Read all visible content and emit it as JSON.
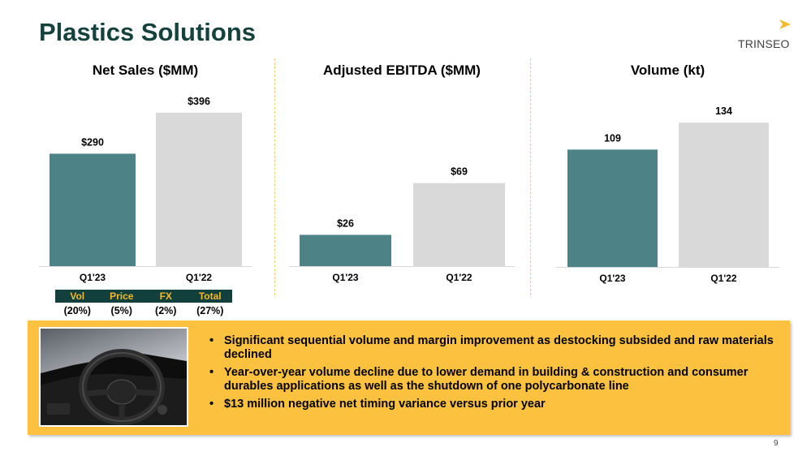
{
  "title": "Plastics Solutions",
  "logo": {
    "text": "TRINSEO",
    "icon": "chevron-mark-icon"
  },
  "colors": {
    "title": "#16423e",
    "teal": "#4d8387",
    "grey": "#d9d9d9",
    "dark": "#12403c",
    "gold": "#f4b92c",
    "callout": "#fcc13e",
    "divider": "#f0cf7a"
  },
  "chart_data": [
    {
      "type": "bar",
      "title": "Net Sales ($MM)",
      "categories": [
        "Q1'23",
        "Q1'22"
      ],
      "values": [
        290,
        396
      ],
      "data_labels": [
        "$290",
        "$396"
      ],
      "ylim": [
        0,
        450
      ],
      "grid": false,
      "legend": "none"
    },
    {
      "type": "bar",
      "title": "Adjusted EBITDA ($MM)",
      "categories": [
        "Q1'23",
        "Q1'22"
      ],
      "values": [
        26,
        69
      ],
      "data_labels": [
        "$26",
        "$69"
      ],
      "ylim": [
        0,
        145
      ],
      "grid": false,
      "legend": "none"
    },
    {
      "type": "bar",
      "title": "Volume (kt)",
      "categories": [
        "Q1'23",
        "Q1'22"
      ],
      "values": [
        109,
        134
      ],
      "data_labels": [
        "109",
        "134"
      ],
      "ylim": [
        0,
        162
      ],
      "grid": false,
      "legend": "none"
    }
  ],
  "bridge": {
    "headers": [
      "Vol",
      "Price",
      "FX",
      "Total"
    ],
    "values": [
      "(20%)",
      "(5%)",
      "(2%)",
      "(27%)"
    ]
  },
  "callout": {
    "image": "car-steering-wheel-photo",
    "bullets": [
      "Significant sequential volume and margin improvement as destocking subsided and raw materials declined",
      "Year-over-year volume decline due to lower demand in building & construction and consumer durables applications as well as the shutdown of one polycarbonate line",
      "$13 million negative net timing variance versus prior year"
    ]
  },
  "page_number": "9"
}
